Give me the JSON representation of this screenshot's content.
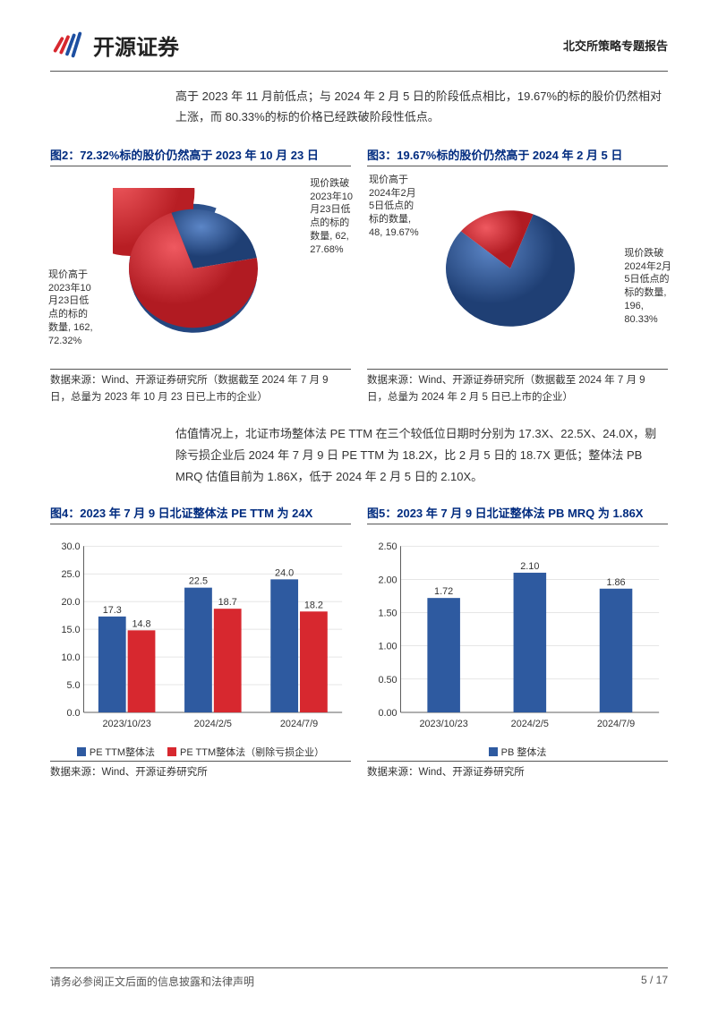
{
  "header": {
    "company_name": "开源证券",
    "report_series": "北交所策略专题报告",
    "logo_colors": {
      "red": "#d7282f",
      "blue": "#1d4fa1"
    }
  },
  "intro_paragraph": "高于 2023 年 11 月前低点；与 2024 年 2 月 5 日的阶段低点相比，19.67%的标的股价仍然相对上涨，而 80.33%的标的价格已经跌破阶段性低点。",
  "figure2": {
    "title": "图2：72.32%标的股价仍然高于 2023 年 10 月 23 日",
    "type": "pie",
    "slices": [
      {
        "name": "现价跌破2023年10月23日低点的标的数量",
        "count": 62,
        "percent": 27.68,
        "color": "#2e5aa0"
      },
      {
        "name": "现价高于2023年10月23日低点的标的数量",
        "count": 162,
        "percent": 72.32,
        "color": "#d7282f"
      }
    ],
    "label_blue": "现价跌破\n2023年10\n月23日低\n点的标的\n数量, 62,\n27.68%",
    "label_red": "现价高于\n2023年10\n月23日低\n点的标的\n数量, 162,\n72.32%",
    "source": "数据来源：Wind、开源证券研究所（数据截至 2024 年 7 月 9 日，总量为 2023 年 10 月 23 日已上市的企业）",
    "background": "#ffffff",
    "label_fontsize": 11
  },
  "figure3": {
    "title": "图3：19.67%标的股价仍然高于 2024 年 2 月 5 日",
    "type": "pie",
    "slices": [
      {
        "name": "现价高于2024年2月5日低点的标的数量",
        "count": 48,
        "percent": 19.67,
        "color": "#d7282f"
      },
      {
        "name": "现价跌破2024年2月5日低点的标的数量",
        "count": 196,
        "percent": 80.33,
        "color": "#2e5aa0"
      }
    ],
    "label_red": "现价高于\n2024年2月\n5日低点的\n标的数量,\n48, 19.67%",
    "label_blue": "现价跌破\n2024年2月\n5日低点的\n标的数量,\n196,\n80.33%",
    "source": "数据来源：Wind、开源证券研究所（数据截至 2024 年 7 月 9 日，总量为 2024 年 2 月 5 日已上市的企业）",
    "background": "#ffffff",
    "label_fontsize": 11
  },
  "mid_paragraph": "估值情况上，北证市场整体法 PE TTM 在三个较低位日期时分别为 17.3X、22.5X、24.0X，剔除亏损企业后 2024 年 7 月 9 日 PE TTM 为 18.2X，比 2 月 5 日的 18.7X 更低；整体法 PB MRQ 估值目前为 1.86X，低于 2024 年 2 月 5 日的 2.10X。",
  "figure4": {
    "title": "图4：2023 年 7 月 9 日北证整体法 PE TTM 为 24X",
    "type": "bar",
    "categories": [
      "2023/10/23",
      "2024/2/5",
      "2024/7/9"
    ],
    "series": [
      {
        "name": "PE TTM整体法",
        "color": "#2e5aa0",
        "values": [
          17.3,
          22.5,
          24.0
        ]
      },
      {
        "name": "PE TTM整体法（剔除亏损企业）",
        "color": "#d7282f",
        "values": [
          14.8,
          18.7,
          18.2
        ]
      }
    ],
    "ylim": [
      0,
      30
    ],
    "ytick_step": 5,
    "grid_color": "#cccccc",
    "background": "#ffffff",
    "bar_width": 0.32,
    "axis_fontsize": 11,
    "source": "数据来源：Wind、开源证券研究所"
  },
  "figure5": {
    "title": "图5：2023 年 7 月 9 日北证整体法 PB MRQ 为 1.86X",
    "type": "bar",
    "categories": [
      "2023/10/23",
      "2024/2/5",
      "2024/7/9"
    ],
    "series": [
      {
        "name": "PB 整体法",
        "color": "#2e5aa0",
        "values": [
          1.72,
          2.1,
          1.86
        ]
      }
    ],
    "ylim": [
      0,
      2.5
    ],
    "ytick_step": 0.5,
    "grid_color": "#cccccc",
    "background": "#ffffff",
    "bar_width": 0.38,
    "axis_fontsize": 11,
    "source": "数据来源：Wind、开源证券研究所"
  },
  "footer": {
    "disclaimer": "请务必参阅正文后面的信息披露和法律声明",
    "page": "5 / 17"
  }
}
